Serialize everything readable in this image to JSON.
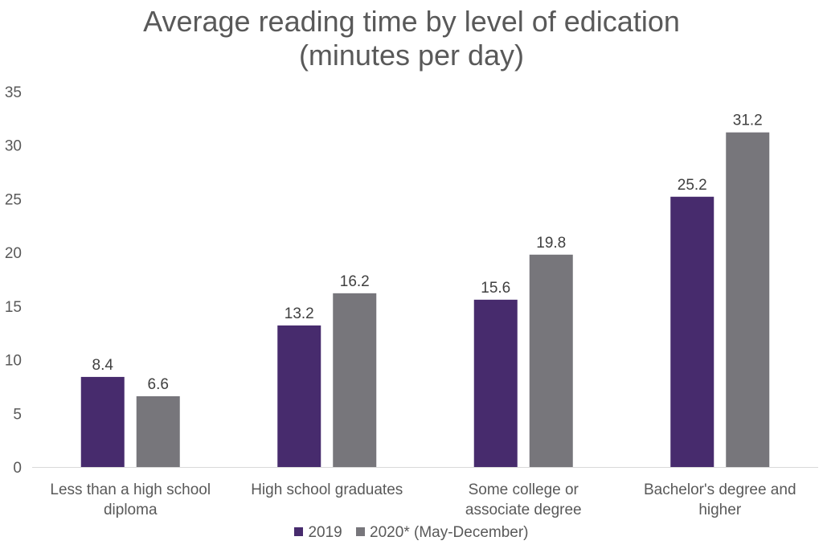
{
  "chart_data": {
    "type": "bar",
    "title_lines": [
      "Average reading time by level of edication",
      "(minutes per day)"
    ],
    "categories": [
      [
        "Less than a high school",
        "diploma"
      ],
      [
        "High school graduates"
      ],
      [
        "Some college or",
        "associate degree"
      ],
      [
        "Bachelor's degree and",
        "higher"
      ]
    ],
    "series": [
      {
        "name": "2019",
        "color": "#472b6d",
        "values": [
          8.4,
          13.2,
          15.6,
          25.2
        ]
      },
      {
        "name": "2020* (May-December)",
        "color": "#77767b",
        "values": [
          6.6,
          16.2,
          19.8,
          31.2
        ]
      }
    ],
    "ylim": [
      0,
      35
    ],
    "yticks": [
      0,
      5,
      10,
      15,
      20,
      25,
      30,
      35
    ],
    "grid": false,
    "legend_position": "bottom",
    "data_labels": true
  }
}
